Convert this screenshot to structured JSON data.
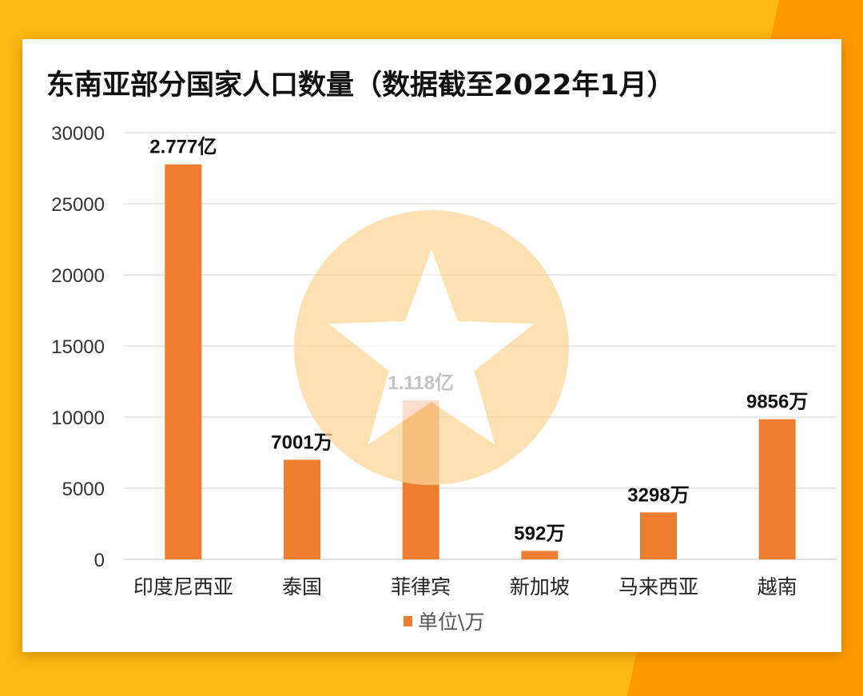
{
  "colors": {
    "background": "#FDB813",
    "background_accent": "#FF9A00",
    "bar": "#ED7D31",
    "watermark": "#FCD79A"
  },
  "watermark_icon": "star-in-circle-icon",
  "chart_data": {
    "type": "bar",
    "title": "东南亚部分国家人口数量（数据截至2022年1月）",
    "categories": [
      "印度尼西亚",
      "泰国",
      "菲律宾",
      "新加坡",
      "马来西亚",
      "越南"
    ],
    "series": [
      {
        "name": "单位\\万",
        "values": [
          27770,
          7001,
          11180,
          592,
          3298,
          9856
        ]
      }
    ],
    "data_labels": [
      "2.777亿",
      "7001万",
      "1.118亿",
      "592万",
      "3298万",
      "9856万"
    ],
    "yticks": [
      0,
      5000,
      10000,
      15000,
      20000,
      25000,
      30000
    ],
    "ylim": [
      0,
      30000
    ],
    "grid": true,
    "legend": "bottom"
  }
}
